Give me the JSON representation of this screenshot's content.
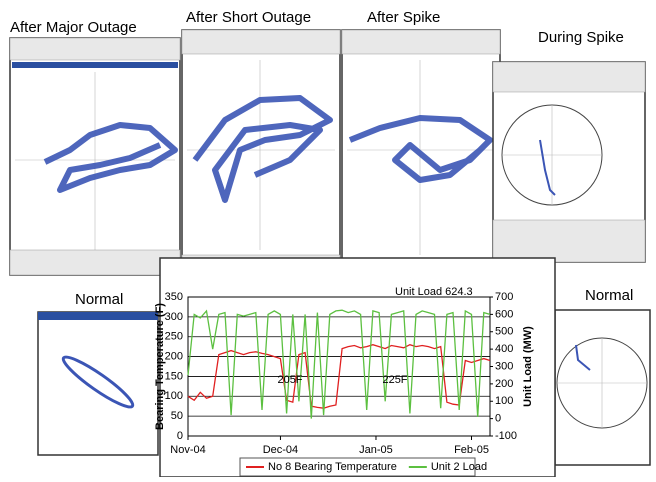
{
  "panels": [
    {
      "label": "After Major Outage"
    },
    {
      "label": "After Short Outage"
    },
    {
      "label": "After Spike"
    },
    {
      "label": "During Spike"
    },
    {
      "label": "Normal"
    },
    {
      "label": "Normal"
    }
  ],
  "chart_data": {
    "type": "line",
    "y_label": "Bearing Temperature (F)",
    "y2_label": "Unit Load (MW)",
    "annotations": [
      "Unit Load 624.3",
      "205F",
      "225F"
    ],
    "x": [
      0,
      2,
      4,
      6,
      8,
      10,
      12,
      14,
      16,
      18,
      20,
      22,
      24,
      26,
      28,
      30,
      32,
      34,
      36,
      38,
      40,
      42,
      44,
      46,
      48,
      50,
      52,
      54,
      56,
      58,
      60,
      62,
      64,
      66,
      68,
      70,
      72,
      74,
      76,
      78,
      80,
      82,
      84,
      86,
      88,
      90,
      92,
      94,
      96,
      98
    ],
    "xlim": [
      0,
      98
    ],
    "xticks": [
      {
        "value": 0,
        "label": "Nov-04"
      },
      {
        "value": 30,
        "label": "Dec-04"
      },
      {
        "value": 61,
        "label": "Jan-05"
      },
      {
        "value": 92,
        "label": "Feb-05"
      }
    ],
    "ylim": [
      0,
      350
    ],
    "yticks": [
      0,
      50,
      100,
      150,
      200,
      250,
      300,
      350
    ],
    "y2lim": [
      -100,
      700
    ],
    "y2ticks": [
      -100,
      0,
      100,
      200,
      300,
      400,
      500,
      600,
      700
    ],
    "grid": true,
    "legend": "bottom",
    "series": [
      {
        "name": "No 8 Bearing Temperature",
        "color": "#e02020",
        "values": [
          100,
          90,
          110,
          95,
          100,
          205,
          210,
          215,
          210,
          205,
          210,
          212,
          208,
          205,
          200,
          195,
          90,
          85,
          205,
          210,
          75,
          72,
          70,
          75,
          78,
          220,
          225,
          228,
          222,
          225,
          230,
          225,
          220,
          228,
          225,
          222,
          230,
          225,
          228,
          225,
          220,
          225,
          85,
          80,
          78,
          190,
          185,
          190,
          195,
          190
        ]
      },
      {
        "name": "Unit 2 Load",
        "color": "#5cc040",
        "axis": "y2",
        "values": [
          250,
          600,
          580,
          620,
          400,
          600,
          610,
          20,
          600,
          590,
          600,
          610,
          50,
          600,
          620,
          600,
          30,
          600,
          100,
          600,
          0,
          610,
          20,
          600,
          620,
          624.3,
          610,
          620,
          600,
          50,
          620,
          610,
          100,
          600,
          610,
          620,
          30,
          600,
          620,
          610,
          600,
          60,
          600,
          610,
          50,
          620,
          600,
          10,
          610,
          600
        ]
      }
    ]
  }
}
